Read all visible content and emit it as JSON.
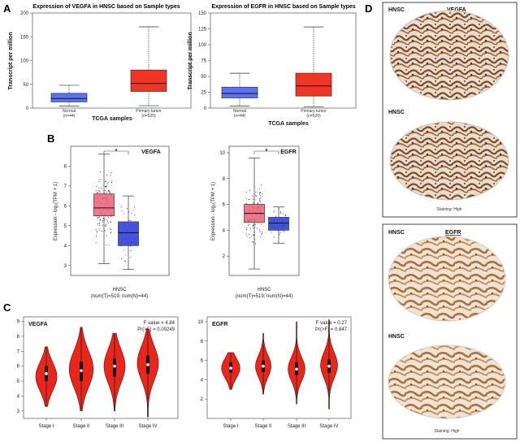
{
  "panel_labels": {
    "a": "A",
    "b": "B",
    "c": "C",
    "d": "D"
  },
  "chart_data": [
    {
      "id": "A1",
      "type": "box",
      "title": "Expression of VEGFA in HNSC based on Sample types",
      "xlabel": "TCGA samples",
      "ylabel": "Transcript per million",
      "ylim": [
        0,
        200
      ],
      "yticks": [
        0,
        50,
        100,
        150,
        200
      ],
      "categories": [
        {
          "line1": "Normal",
          "line2": "(n=44)"
        },
        {
          "line1": "Primary tumor",
          "line2": "(n=520)"
        }
      ],
      "boxes": [
        {
          "min": 4,
          "q1": 13,
          "median": 20,
          "q3": 31,
          "max": 48,
          "color": "#5b73f2"
        },
        {
          "min": 5,
          "q1": 35,
          "median": 52,
          "q3": 80,
          "max": 171,
          "color": "#f23424"
        }
      ]
    },
    {
      "id": "A2",
      "type": "box",
      "title": "Expression of EGFR in HNSC based on Sample types",
      "xlabel": "TCGA samples",
      "ylabel": "Transcript per million",
      "ylim": [
        0,
        150
      ],
      "yticks": [
        0,
        25,
        50,
        75,
        100,
        125,
        150
      ],
      "categories": [
        {
          "line1": "Normal",
          "line2": "(n=44)"
        },
        {
          "line1": "Primary tumor",
          "line2": "(n=520)"
        }
      ],
      "boxes": [
        {
          "min": 3,
          "q1": 16,
          "median": 23,
          "q3": 33,
          "max": 55,
          "color": "#5b73f2"
        },
        {
          "min": 2,
          "q1": 19,
          "median": 35,
          "q3": 55,
          "max": 128,
          "color": "#f23424"
        }
      ]
    },
    {
      "id": "B1",
      "type": "box",
      "gene": "VEGFA",
      "ylabel": "Expression - log₂(TPM + 1)",
      "ylim": [
        2.5,
        9
      ],
      "yticks": [
        3,
        4,
        5,
        6,
        7,
        8
      ],
      "xlabel": "HNSC",
      "xsublabel": "(num(T)=519; num(N)=44)",
      "sig": "*",
      "boxes": [
        {
          "min": 3.1,
          "q1": 5.5,
          "median": 5.9,
          "q3": 6.6,
          "max": 8.6,
          "color": "#f0607a",
          "n": 160
        },
        {
          "min": 2.8,
          "q1": 4.0,
          "median": 4.65,
          "q3": 5.2,
          "max": 6.5,
          "color": "#2436d8",
          "n": 44
        }
      ]
    },
    {
      "id": "B2",
      "type": "box",
      "gene": "EGFR",
      "ylabel": "Expression - log₂(TPM + 1)",
      "ylim": [
        0.5,
        10.5
      ],
      "yticks": [
        2,
        4,
        6,
        8,
        10
      ],
      "xlabel": "HNSC",
      "xsublabel": "(num(T)=519; num(N)=44)",
      "sig": "*",
      "boxes": [
        {
          "min": 1.0,
          "q1": 4.6,
          "median": 5.3,
          "q3": 6.0,
          "max": 9.6,
          "color": "#f0607a",
          "n": 160
        },
        {
          "min": 3.0,
          "q1": 4.0,
          "median": 4.55,
          "q3": 5.0,
          "max": 5.8,
          "color": "#2436d8",
          "n": 44
        }
      ]
    },
    {
      "id": "C1",
      "type": "violin",
      "gene": "VEGFA",
      "stat_f": "F value = 4.84",
      "stat_p": "Pr(>F) = 0.00249",
      "ylim": [
        2.5,
        9.3
      ],
      "yticks": [
        3,
        4,
        5,
        6,
        7,
        8,
        9
      ],
      "categories": [
        "Stage I",
        "Stage II",
        "Stage III",
        "Stage IV"
      ],
      "violins": [
        {
          "min": 3.3,
          "max": 7.3,
          "center": 5.5,
          "q1": 5.0,
          "q3": 6.0,
          "peak": 5.3,
          "width": 0.75
        },
        {
          "min": 3.0,
          "max": 8.6,
          "center": 5.7,
          "q1": 5.0,
          "q3": 6.3,
          "peak": 5.8,
          "width": 0.85
        },
        {
          "min": 3.0,
          "max": 8.2,
          "center": 6.0,
          "q1": 5.3,
          "q3": 6.5,
          "peak": 6.0,
          "width": 0.75
        },
        {
          "min": 2.6,
          "max": 8.5,
          "center": 6.1,
          "q1": 5.5,
          "q3": 6.7,
          "peak": 6.2,
          "width": 0.75
        }
      ]
    },
    {
      "id": "C2",
      "type": "violin",
      "gene": "EGFR",
      "stat_f": "F value = 0.27",
      "stat_p": "Pr(>F) = 0.847",
      "ylim": [
        0,
        10.5
      ],
      "yticks": [
        2,
        4,
        6,
        8,
        10
      ],
      "categories": [
        "Stage I",
        "Stage II",
        "Stage III",
        "Stage IV"
      ],
      "violins": [
        {
          "min": 3.0,
          "max": 6.8,
          "center": 5.2,
          "q1": 4.7,
          "q3": 5.8,
          "peak": 5.2,
          "width": 0.65
        },
        {
          "min": 2.5,
          "max": 8.8,
          "center": 5.4,
          "q1": 4.8,
          "q3": 6.0,
          "peak": 5.4,
          "width": 0.55
        },
        {
          "min": 1.5,
          "max": 10.0,
          "center": 5.1,
          "q1": 4.5,
          "q3": 5.8,
          "peak": 5.1,
          "width": 0.6
        },
        {
          "min": 1.0,
          "max": 10.2,
          "center": 5.4,
          "q1": 4.7,
          "q3": 6.1,
          "peak": 5.5,
          "width": 0.6
        }
      ]
    }
  ],
  "ihc": {
    "vegfa": {
      "gene": "VEGFA",
      "tumor": "HNSC",
      "staining": "Staining: High"
    },
    "egfr": {
      "gene": "EGFR",
      "tumor": "HNSC",
      "staining": "Staining: High"
    }
  }
}
